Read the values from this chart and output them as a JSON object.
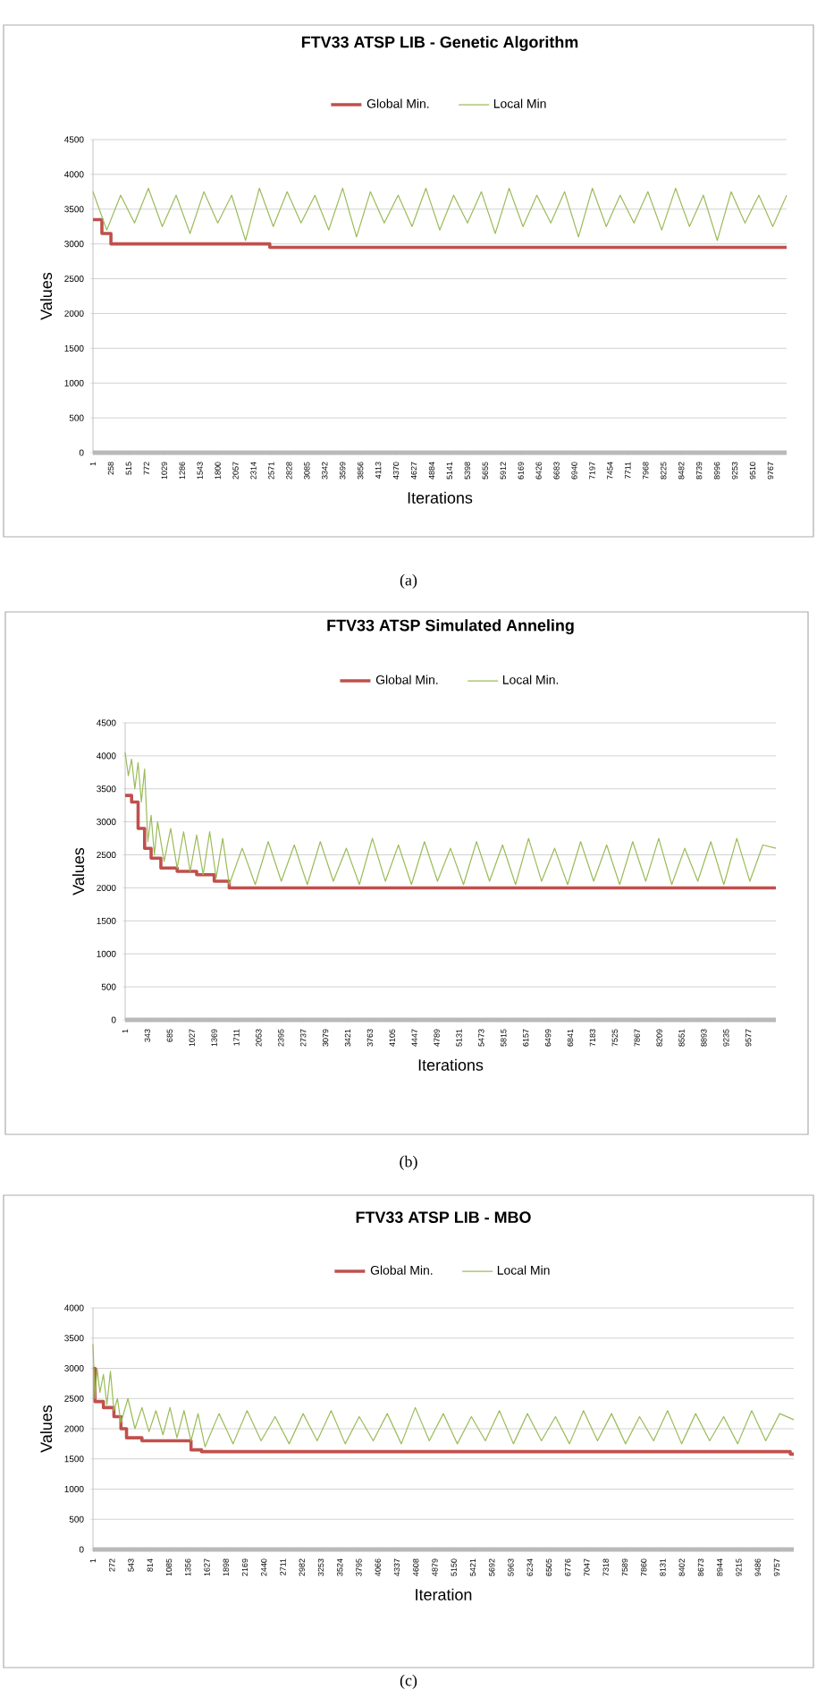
{
  "chart_data": [
    {
      "type": "line",
      "title": "FTV33  ATSP LIB - Genetic  Algorithm",
      "xlabel": "Iterations",
      "ylabel": "Values",
      "annotations": [
        "(a)"
      ],
      "grid": "y",
      "legend": "top",
      "xlim": [
        1,
        10000
      ],
      "ylim": [
        0,
        4500
      ],
      "yticks": [
        0,
        500,
        1000,
        1500,
        2000,
        2500,
        3000,
        3500,
        4000,
        4500
      ],
      "xticks": [
        1,
        258,
        515,
        772,
        1029,
        1286,
        1543,
        1800,
        2057,
        2314,
        2571,
        2828,
        3085,
        3342,
        3599,
        3856,
        4113,
        4370,
        4627,
        4884,
        5141,
        5398,
        5655,
        5912,
        6169,
        6426,
        6683,
        6940,
        7197,
        7454,
        7711,
        7968,
        8225,
        8482,
        8739,
        8996,
        9253,
        9510,
        9767
      ],
      "series": [
        {
          "name": "Global Min.",
          "type": "step",
          "color": "#c0504d",
          "x": [
            1,
            130,
            260,
            2550,
            10000
          ],
          "values": [
            3350,
            3150,
            3000,
            2950,
            2950
          ]
        },
        {
          "name": "Local Min",
          "color": "#9bbb59",
          "x": [
            1,
            200,
            400,
            600,
            800,
            1000,
            1200,
            1400,
            1600,
            1800,
            2000,
            2200,
            2400,
            2600,
            2800,
            3000,
            3200,
            3400,
            3600,
            3800,
            4000,
            4200,
            4400,
            4600,
            4800,
            5000,
            5200,
            5400,
            5600,
            5800,
            6000,
            6200,
            6400,
            6600,
            6800,
            7000,
            7200,
            7400,
            7600,
            7800,
            8000,
            8200,
            8400,
            8600,
            8800,
            9000,
            9200,
            9400,
            9600,
            9800,
            10000
          ],
          "values": [
            3750,
            3200,
            3700,
            3300,
            3800,
            3250,
            3700,
            3150,
            3750,
            3300,
            3700,
            3050,
            3800,
            3250,
            3750,
            3300,
            3700,
            3200,
            3800,
            3100,
            3750,
            3300,
            3700,
            3250,
            3800,
            3200,
            3700,
            3300,
            3750,
            3150,
            3800,
            3250,
            3700,
            3300,
            3750,
            3100,
            3800,
            3250,
            3700,
            3300,
            3750,
            3200,
            3800,
            3250,
            3700,
            3050,
            3750,
            3300,
            3700,
            3250,
            3700
          ]
        }
      ]
    },
    {
      "type": "line",
      "title": "FTV33 ATSP Simulated Anneling",
      "xlabel": "Iterations",
      "ylabel": "Values",
      "annotations": [
        "(b)"
      ],
      "grid": "y",
      "legend": "top",
      "xlim": [
        1,
        10000
      ],
      "ylim": [
        0,
        4500
      ],
      "yticks": [
        0,
        500,
        1000,
        1500,
        2000,
        2500,
        3000,
        3500,
        4000,
        4500
      ],
      "xticks": [
        1,
        343,
        685,
        1027,
        1369,
        1711,
        2053,
        2395,
        2737,
        3079,
        3421,
        3763,
        4105,
        4447,
        4789,
        5131,
        5473,
        5815,
        6157,
        6499,
        6841,
        7183,
        7525,
        7867,
        8209,
        8551,
        8893,
        9235,
        9577
      ],
      "series": [
        {
          "name": "Global Min.",
          "type": "step",
          "color": "#c0504d",
          "x": [
            1,
            100,
            200,
            300,
            400,
            550,
            800,
            1100,
            1370,
            1600,
            10000
          ],
          "values": [
            3400,
            3300,
            2900,
            2600,
            2450,
            2300,
            2250,
            2200,
            2100,
            2000,
            2000
          ]
        },
        {
          "name": "Local Min.",
          "color": "#9bbb59",
          "x": [
            1,
            50,
            100,
            150,
            200,
            250,
            300,
            350,
            400,
            450,
            500,
            600,
            700,
            800,
            900,
            1000,
            1100,
            1200,
            1300,
            1400,
            1500,
            1600,
            1800,
            2000,
            2200,
            2400,
            2600,
            2800,
            3000,
            3200,
            3400,
            3600,
            3800,
            4000,
            4200,
            4400,
            4600,
            4800,
            5000,
            5200,
            5400,
            5600,
            5800,
            6000,
            6200,
            6400,
            6600,
            6800,
            7000,
            7200,
            7400,
            7600,
            7800,
            8000,
            8200,
            8400,
            8600,
            8800,
            9000,
            9200,
            9400,
            9600,
            9800,
            10000
          ],
          "values": [
            4050,
            3700,
            3950,
            3500,
            3900,
            3300,
            3800,
            2700,
            3100,
            2500,
            3000,
            2400,
            2900,
            2300,
            2850,
            2250,
            2800,
            2200,
            2850,
            2150,
            2750,
            2050,
            2600,
            2050,
            2700,
            2100,
            2650,
            2050,
            2700,
            2100,
            2600,
            2050,
            2750,
            2100,
            2650,
            2050,
            2700,
            2100,
            2600,
            2050,
            2700,
            2100,
            2650,
            2050,
            2750,
            2100,
            2600,
            2050,
            2700,
            2100,
            2650,
            2050,
            2700,
            2100,
            2750,
            2050,
            2600,
            2100,
            2700,
            2050,
            2750,
            2100,
            2650,
            2600
          ]
        }
      ]
    },
    {
      "type": "line",
      "title": "FTV33  ATSP LIB - MBO",
      "xlabel": "Iteration",
      "ylabel": "Values",
      "annotations": [
        "(c)"
      ],
      "grid": "y",
      "legend": "top",
      "xlim": [
        1,
        10000
      ],
      "ylim": [
        0,
        4000
      ],
      "yticks": [
        0,
        500,
        1000,
        1500,
        2000,
        2500,
        3000,
        3500,
        4000
      ],
      "xticks": [
        1,
        272,
        543,
        814,
        1085,
        1356,
        1627,
        1898,
        2169,
        2440,
        2711,
        2982,
        3253,
        3524,
        3795,
        4066,
        4337,
        4608,
        4879,
        5150,
        5421,
        5692,
        5963,
        6234,
        6505,
        6776,
        7047,
        7318,
        7589,
        7860,
        8131,
        8402,
        8673,
        8944,
        9215,
        9486,
        9757
      ],
      "series": [
        {
          "name": "Global Min.",
          "type": "step",
          "color": "#c0504d",
          "x": [
            1,
            30,
            150,
            300,
            400,
            480,
            700,
            1400,
            1550,
            9950,
            10000
          ],
          "values": [
            3000,
            2450,
            2350,
            2200,
            2000,
            1850,
            1800,
            1650,
            1620,
            1580,
            1580
          ]
        },
        {
          "name": "Local Min",
          "color": "#9bbb59",
          "x": [
            1,
            30,
            60,
            100,
            150,
            200,
            250,
            300,
            350,
            400,
            500,
            600,
            700,
            800,
            900,
            1000,
            1100,
            1200,
            1300,
            1400,
            1500,
            1600,
            1800,
            2000,
            2200,
            2400,
            2600,
            2800,
            3000,
            3200,
            3400,
            3600,
            3800,
            4000,
            4200,
            4400,
            4600,
            4800,
            5000,
            5200,
            5400,
            5600,
            5800,
            6000,
            6200,
            6400,
            6600,
            6800,
            7000,
            7200,
            7400,
            7600,
            7800,
            8000,
            8200,
            8400,
            8600,
            8800,
            9000,
            9200,
            9400,
            9600,
            9800,
            10000
          ],
          "values": [
            3400,
            2500,
            3000,
            2600,
            2900,
            2400,
            2950,
            2300,
            2500,
            2100,
            2500,
            2000,
            2350,
            1950,
            2300,
            1900,
            2350,
            1850,
            2300,
            1800,
            2250,
            1700,
            2250,
            1750,
            2300,
            1800,
            2200,
            1750,
            2250,
            1800,
            2300,
            1750,
            2200,
            1800,
            2250,
            1750,
            2350,
            1800,
            2250,
            1750,
            2200,
            1800,
            2300,
            1750,
            2250,
            1800,
            2200,
            1750,
            2300,
            1800,
            2250,
            1750,
            2200,
            1800,
            2300,
            1750,
            2250,
            1800,
            2200,
            1750,
            2300,
            1800,
            2250,
            2150
          ]
        }
      ]
    }
  ]
}
